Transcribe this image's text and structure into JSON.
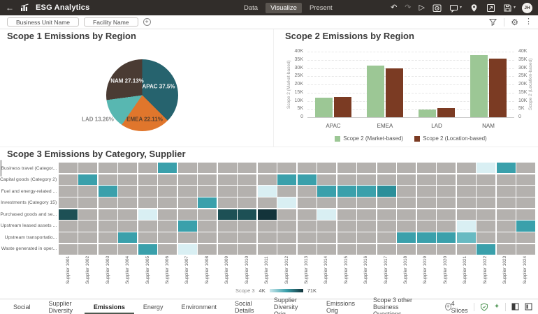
{
  "colors": {
    "header_bg": "#312d2a",
    "footer_icon_green": "#5f9e63",
    "active_tab_underline": "#4e584f"
  },
  "header": {
    "back_label": "←",
    "title": "ESG Analytics",
    "tabs": [
      {
        "label": "Data",
        "active": false
      },
      {
        "label": "Visualize",
        "active": true
      },
      {
        "label": "Present",
        "active": false
      }
    ],
    "toolbar": [
      {
        "name": "undo",
        "glyph": "↶",
        "enabled": true
      },
      {
        "name": "redo",
        "glyph": "↷",
        "enabled": false
      },
      {
        "name": "preview",
        "glyph": "▷",
        "enabled": true
      },
      {
        "name": "auto-refresh",
        "icon": "clock-box",
        "enabled": true
      },
      {
        "name": "annotate",
        "icon": "comment",
        "caret": true,
        "enabled": true
      },
      {
        "name": "map-pin",
        "icon": "pin",
        "enabled": true
      },
      {
        "name": "open-window",
        "icon": "window",
        "enabled": true
      },
      {
        "name": "save",
        "icon": "floppy",
        "caret": true,
        "enabled": true
      }
    ],
    "avatar": "JH"
  },
  "filter_bar": {
    "chips": [
      "Business Unit Name",
      "Facility Name"
    ],
    "add_label": "+"
  },
  "chart_data": [
    {
      "type": "pie",
      "title": "Scope 1 Emissions by Region",
      "slices": [
        {
          "label": "APAC",
          "value": 37.5,
          "display": "APAC 37.5%",
          "color": "#26636e"
        },
        {
          "label": "EMEA",
          "value": 22.11,
          "display": "EMEA 22.11%",
          "color": "#e0762c"
        },
        {
          "label": "LAD",
          "value": 13.26,
          "display": "LAD 13.26%",
          "color": "#58b7b1"
        },
        {
          "label": "NAM",
          "value": 27.13,
          "display": "NAM 27.13%",
          "color": "#4a3b33"
        }
      ]
    },
    {
      "type": "bar",
      "title": "Scope 2 Emissions by Region",
      "categories": [
        "APAC",
        "EMEA",
        "LAD",
        "NAM"
      ],
      "series": [
        {
          "name": "Scope 2 (Market-based)",
          "color": "#9cc795",
          "values": [
            12000,
            31400,
            4900,
            37700
          ]
        },
        {
          "name": "Scope 2 (Location-based)",
          "color": "#7b3b23",
          "values": [
            12400,
            29900,
            5400,
            35700
          ]
        }
      ],
      "ylim": [
        0,
        40000
      ],
      "yticks": [
        "40K",
        "35K",
        "30K",
        "25K",
        "20K",
        "15K",
        "10K",
        "5K",
        "0"
      ],
      "y_axis_left": "Scope 2 (Market-based)",
      "y_axis_right": "Scope 2 (Location-based)",
      "grid": "dashed-horizontal",
      "legend_position": "bottom"
    },
    {
      "type": "heatmap",
      "title": "Scope 3 Emissions by Category, Supplier",
      "rows": [
        "Business travel (Categor...",
        "Capital goods (Category 2)",
        "Fuel and energy-related ...",
        "Investments (Category 15)",
        "Purchased goods and se...",
        "Upstream leased assets ...",
        "Upstream transportatio...",
        "Waste generated in oper..."
      ],
      "columns": [
        "Supplier 1001",
        "Supplier 1002",
        "Supplier 1003",
        "Supplier 1004",
        "Supplier 1005",
        "Supplier 1006",
        "Supplier 1007",
        "Supplier 1008",
        "Supplier 1009",
        "Supplier 1010",
        "Supplier 1011",
        "Supplier 1012",
        "Supplier 1013",
        "Supplier 1014",
        "Supplier 1015",
        "Supplier 1016",
        "Supplier 1017",
        "Supplier 1018",
        "Supplier 1019",
        "Supplier 1020",
        "Supplier 1021",
        "Supplier 1022",
        "Supplier 1023",
        "Supplier 1024"
      ],
      "cells": [
        ".....T...............LT.",
        ".T.........TT...........",
        "..T.......L..TTTU.......",
        ".......T...L............",
        "D...L...DDK..L..........",
        "......T.............L..T",
        "...T.............TTTt...",
        "....T.L..............T.."
      ],
      "palette": {
        ".": "#b4b1ae",
        "L": "#d9eff3",
        "t": "#68bac2",
        "T": "#3aa0ab",
        "U": "#2b8f9a",
        "D": "#1d5055",
        "K": "#13333a"
      },
      "legend": {
        "label": "Scope 3",
        "min": "4K",
        "max": "71K"
      }
    }
  ],
  "footer": {
    "tabs": [
      {
        "label": "Social",
        "active": false
      },
      {
        "label": "Supplier Diversity",
        "active": false
      },
      {
        "label": "Emissions",
        "active": true
      },
      {
        "label": "Energy",
        "active": false
      },
      {
        "label": "Environment",
        "active": false
      },
      {
        "label": "Social Details",
        "active": false
      },
      {
        "label": "Supplier Diversity Orig",
        "active": false
      },
      {
        "label": "Emissions Orig",
        "active": false
      },
      {
        "label": "Scope 3 other Business Questions",
        "active": false
      }
    ],
    "add_label": "+",
    "slices_label": "4 Slices"
  }
}
